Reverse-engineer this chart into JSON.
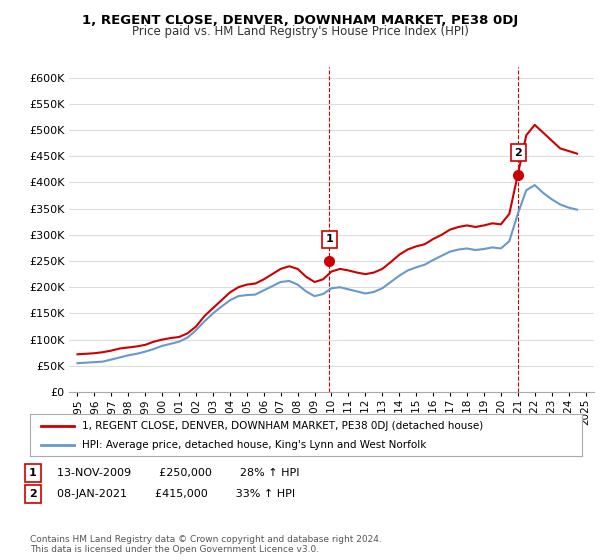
{
  "title": "1, REGENT CLOSE, DENVER, DOWNHAM MARKET, PE38 0DJ",
  "subtitle": "Price paid vs. HM Land Registry's House Price Index (HPI)",
  "ylabel_ticks": [
    "£0",
    "£50K",
    "£100K",
    "£150K",
    "£200K",
    "£250K",
    "£300K",
    "£350K",
    "£400K",
    "£450K",
    "£500K",
    "£550K",
    "£600K"
  ],
  "ylim": [
    0,
    620000
  ],
  "yticks": [
    0,
    50000,
    100000,
    150000,
    200000,
    250000,
    300000,
    350000,
    400000,
    450000,
    500000,
    550000,
    600000
  ],
  "xlim_start": 1994.5,
  "xlim_end": 2025.5,
  "xticks": [
    1995,
    1996,
    1997,
    1998,
    1999,
    2000,
    2001,
    2002,
    2003,
    2004,
    2005,
    2006,
    2007,
    2008,
    2009,
    2010,
    2011,
    2012,
    2013,
    2014,
    2015,
    2016,
    2017,
    2018,
    2019,
    2020,
    2021,
    2022,
    2023,
    2024,
    2025
  ],
  "sale1_x": 2009.87,
  "sale1_y": 250000,
  "sale1_label": "1",
  "sale2_x": 2021.03,
  "sale2_y": 415000,
  "sale2_label": "2",
  "vline1_x": 2009.87,
  "vline2_x": 2021.03,
  "legend_line1": "1, REGENT CLOSE, DENVER, DOWNHAM MARKET, PE38 0DJ (detached house)",
  "legend_line2": "HPI: Average price, detached house, King's Lynn and West Norfolk",
  "annotation1": "1   13-NOV-2009       £250,000       28% ↑ HPI",
  "annotation2": "2   08-JAN-2021       £415,000       33% ↑ HPI",
  "footnote": "Contains HM Land Registry data © Crown copyright and database right 2024.\nThis data is licensed under the Open Government Licence v3.0.",
  "red_color": "#cc0000",
  "blue_color": "#6699cc",
  "vline_color": "#cc0000",
  "background_color": "#ffffff",
  "grid_color": "#dddddd",
  "hpi_red_data_x": [
    1995.0,
    1995.5,
    1996.0,
    1996.5,
    1997.0,
    1997.5,
    1998.0,
    1998.5,
    1999.0,
    1999.5,
    2000.0,
    2000.5,
    2001.0,
    2001.5,
    2002.0,
    2002.5,
    2003.0,
    2003.5,
    2004.0,
    2004.5,
    2005.0,
    2005.5,
    2006.0,
    2006.5,
    2007.0,
    2007.5,
    2008.0,
    2008.5,
    2009.0,
    2009.5,
    2010.0,
    2010.5,
    2011.0,
    2011.5,
    2012.0,
    2012.5,
    2013.0,
    2013.5,
    2014.0,
    2014.5,
    2015.0,
    2015.5,
    2016.0,
    2016.5,
    2017.0,
    2017.5,
    2018.0,
    2018.5,
    2019.0,
    2019.5,
    2020.0,
    2020.5,
    2021.0,
    2021.5,
    2022.0,
    2022.5,
    2023.0,
    2023.5,
    2024.0,
    2024.5
  ],
  "hpi_red_data_y": [
    72000,
    73000,
    74000,
    76000,
    79000,
    83000,
    85000,
    87000,
    90000,
    96000,
    100000,
    103000,
    105000,
    112000,
    125000,
    145000,
    160000,
    175000,
    190000,
    200000,
    205000,
    207000,
    215000,
    225000,
    235000,
    240000,
    235000,
    220000,
    210000,
    215000,
    230000,
    235000,
    232000,
    228000,
    225000,
    228000,
    235000,
    248000,
    262000,
    272000,
    278000,
    282000,
    292000,
    300000,
    310000,
    315000,
    318000,
    315000,
    318000,
    322000,
    320000,
    340000,
    415000,
    490000,
    510000,
    495000,
    480000,
    465000,
    460000,
    455000
  ],
  "hpi_blue_data_x": [
    1995.0,
    1995.5,
    1996.0,
    1996.5,
    1997.0,
    1997.5,
    1998.0,
    1998.5,
    1999.0,
    1999.5,
    2000.0,
    2000.5,
    2001.0,
    2001.5,
    2002.0,
    2002.5,
    2003.0,
    2003.5,
    2004.0,
    2004.5,
    2005.0,
    2005.5,
    2006.0,
    2006.5,
    2007.0,
    2007.5,
    2008.0,
    2008.5,
    2009.0,
    2009.5,
    2010.0,
    2010.5,
    2011.0,
    2011.5,
    2012.0,
    2012.5,
    2013.0,
    2013.5,
    2014.0,
    2014.5,
    2015.0,
    2015.5,
    2016.0,
    2016.5,
    2017.0,
    2017.5,
    2018.0,
    2018.5,
    2019.0,
    2019.5,
    2020.0,
    2020.5,
    2021.0,
    2021.5,
    2022.0,
    2022.5,
    2023.0,
    2023.5,
    2024.0,
    2024.5
  ],
  "hpi_blue_data_y": [
    55000,
    56000,
    57000,
    58000,
    62000,
    66000,
    70000,
    73000,
    77000,
    82000,
    88000,
    92000,
    96000,
    104000,
    118000,
    135000,
    150000,
    163000,
    175000,
    183000,
    185000,
    186000,
    194000,
    202000,
    210000,
    212000,
    205000,
    192000,
    183000,
    187000,
    198000,
    200000,
    196000,
    192000,
    188000,
    191000,
    198000,
    210000,
    222000,
    232000,
    238000,
    243000,
    252000,
    260000,
    268000,
    272000,
    274000,
    271000,
    273000,
    276000,
    274000,
    288000,
    340000,
    385000,
    395000,
    380000,
    368000,
    358000,
    352000,
    348000
  ]
}
